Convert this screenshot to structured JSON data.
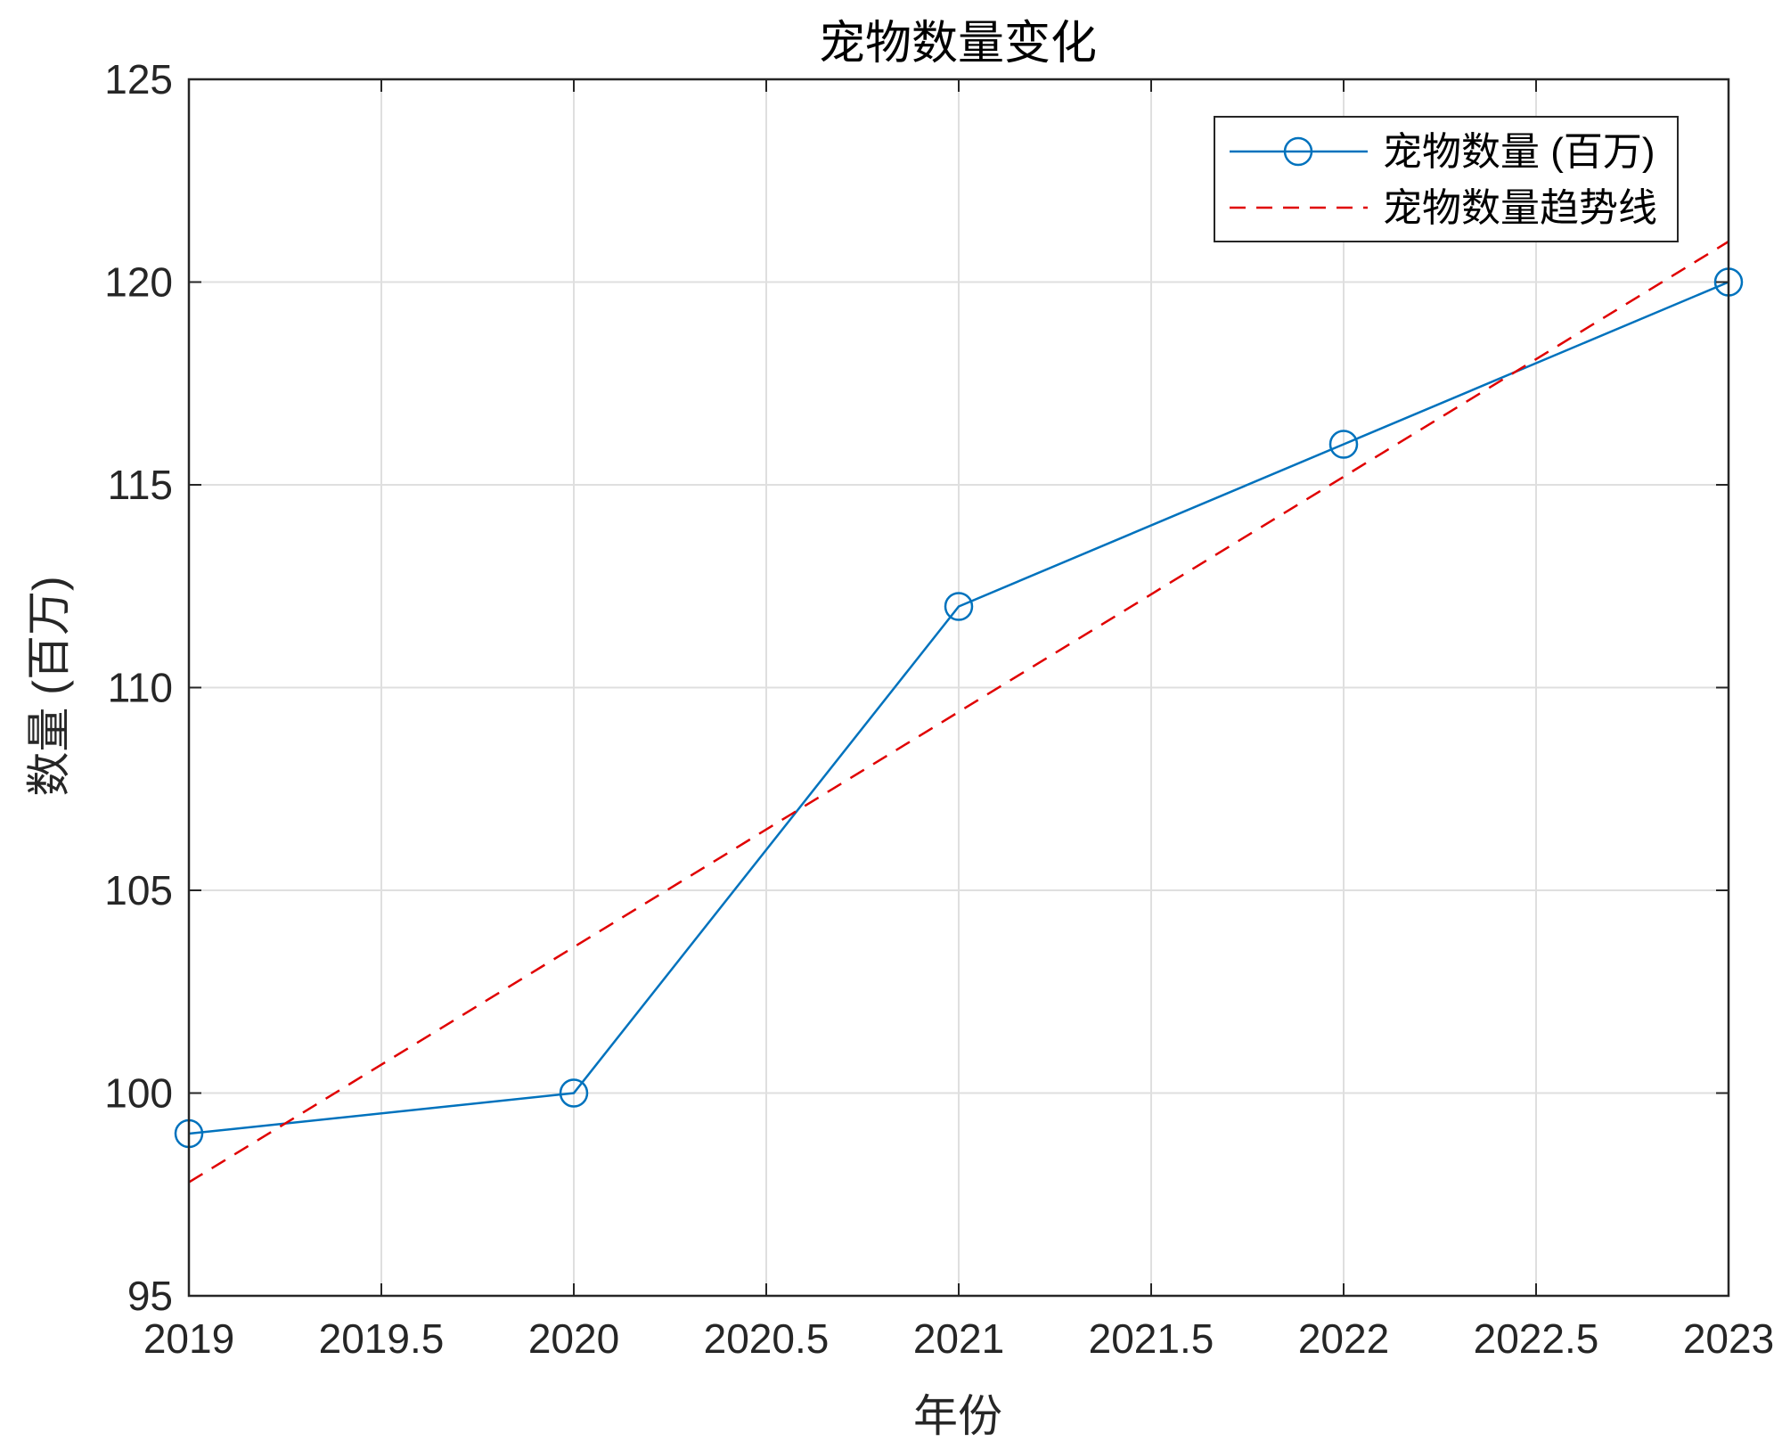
{
  "chart_data": {
    "type": "line",
    "title": "宠物数量变化",
    "xlabel": "年份",
    "ylabel": "数量 (百万)",
    "xlim": [
      2019,
      2023
    ],
    "ylim": [
      95,
      125
    ],
    "xticks": [
      2019,
      2019.5,
      2020,
      2020.5,
      2021,
      2021.5,
      2022,
      2022.5,
      2023
    ],
    "xtick_labels": [
      "2019",
      "2019.5",
      "2020",
      "2020.5",
      "2021",
      "2021.5",
      "2022",
      "2022.5",
      "2023"
    ],
    "yticks": [
      95,
      100,
      105,
      110,
      115,
      120,
      125
    ],
    "ytick_labels": [
      "95",
      "100",
      "105",
      "110",
      "115",
      "120",
      "125"
    ],
    "grid": true,
    "legend_position": "top-right",
    "series": [
      {
        "name": "宠物数量 (百万)",
        "color": "#0072BD",
        "style": "solid",
        "marker": "circle",
        "x": [
          2019,
          2020,
          2021,
          2022,
          2023
        ],
        "y": [
          99,
          100,
          112,
          116,
          120
        ]
      },
      {
        "name": "宠物数量趋势线",
        "color": "#E00000",
        "style": "dashed",
        "marker": "none",
        "x": [
          2019,
          2023
        ],
        "y": [
          97.8,
          121.0
        ]
      }
    ]
  }
}
